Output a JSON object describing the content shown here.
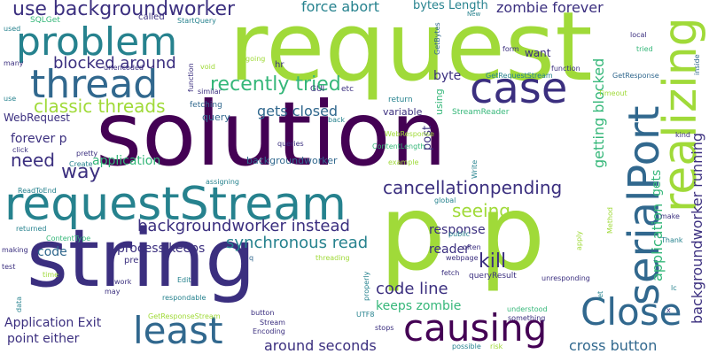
{
  "palette": {
    "dark_purple": "#440154",
    "indigo": "#3b2f7f",
    "blue": "#31688e",
    "teal": "#26828e",
    "green": "#35b779",
    "lime": "#a0da39",
    "yellow": "#d8e219"
  },
  "words": [
    {
      "text": "request",
      "size": 108,
      "color": "#a0da39",
      "v": false,
      "l": 258,
      "t": 76
    },
    {
      "text": "solution",
      "size": 100,
      "color": "#440154",
      "v": false,
      "l": 108,
      "t": 197
    },
    {
      "text": "p p",
      "size": 118,
      "color": "#a0da39",
      "v": false,
      "l": 428,
      "t": 316
    },
    {
      "text": "string",
      "size": 90,
      "color": "#3b2f7f",
      "v": false,
      "l": 30,
      "t": 333
    },
    {
      "text": "requestStream",
      "size": 52,
      "color": "#26828e",
      "v": false,
      "l": 5,
      "t": 254
    },
    {
      "text": "problem",
      "size": 44,
      "color": "#26828e",
      "v": false,
      "l": 18,
      "t": 68
    },
    {
      "text": "thread",
      "size": 44,
      "color": "#31688e",
      "v": false,
      "l": 34,
      "t": 116
    },
    {
      "text": "case",
      "size": 48,
      "color": "#3b2f7f",
      "v": false,
      "l": 530,
      "t": 122
    },
    {
      "text": "realizing",
      "size": 52,
      "color": "#a0da39",
      "v": true,
      "l": 742,
      "t": 240
    },
    {
      "text": "serialPort",
      "size": 48,
      "color": "#31688e",
      "v": true,
      "l": 703,
      "t": 345
    },
    {
      "text": "Close",
      "size": 42,
      "color": "#31688e",
      "v": false,
      "l": 655,
      "t": 372
    },
    {
      "text": "least",
      "size": 42,
      "color": "#31688e",
      "v": false,
      "l": 150,
      "t": 393
    },
    {
      "text": "causing",
      "size": 42,
      "color": "#440154",
      "v": false,
      "l": 455,
      "t": 390
    },
    {
      "text": "use backgroundworker",
      "size": 22,
      "color": "#3b2f7f",
      "v": false,
      "l": 14,
      "t": 21
    },
    {
      "text": "recently tried",
      "size": 22,
      "color": "#35b779",
      "v": false,
      "l": 237,
      "t": 106
    },
    {
      "text": "classic threads",
      "size": 20,
      "color": "#a0da39",
      "v": false,
      "l": 38,
      "t": 129
    },
    {
      "text": "blocked around",
      "size": 18,
      "color": "#3b2f7f",
      "v": false,
      "l": 60,
      "t": 80
    },
    {
      "text": "force abort",
      "size": 16,
      "color": "#26828e",
      "v": false,
      "l": 340,
      "t": 14
    },
    {
      "text": "zombie forever",
      "size": 16,
      "color": "#3b2f7f",
      "v": false,
      "l": 560,
      "t": 16
    },
    {
      "text": "bytes Length",
      "size": 13,
      "color": "#26828e",
      "v": false,
      "l": 466,
      "t": 12
    },
    {
      "text": "gets closed",
      "size": 16,
      "color": "#31688e",
      "v": false,
      "l": 290,
      "t": 133
    },
    {
      "text": "forever p",
      "size": 14,
      "color": "#3b2f7f",
      "v": false,
      "l": 12,
      "t": 163
    },
    {
      "text": "need",
      "size": 20,
      "color": "#3b2f7f",
      "v": false,
      "l": 12,
      "t": 190
    },
    {
      "text": "way",
      "size": 22,
      "color": "#3b2f7f",
      "v": false,
      "l": 69,
      "t": 205
    },
    {
      "text": "application",
      "size": 14,
      "color": "#35b779",
      "v": false,
      "l": 104,
      "t": 188
    },
    {
      "text": "cancellationpending",
      "size": 20,
      "color": "#3b2f7f",
      "v": false,
      "l": 432,
      "t": 221
    },
    {
      "text": "seeing",
      "size": 20,
      "color": "#a0da39",
      "v": false,
      "l": 510,
      "t": 247
    },
    {
      "text": "kill",
      "size": 22,
      "color": "#3b2f7f",
      "v": false,
      "l": 540,
      "t": 306
    },
    {
      "text": "backgroundworker instead",
      "size": 18,
      "color": "#3b2f7f",
      "v": false,
      "l": 155,
      "t": 264
    },
    {
      "text": "synchronous read",
      "size": 18,
      "color": "#26828e",
      "v": false,
      "l": 255,
      "t": 283
    },
    {
      "text": "process keeps",
      "size": 14,
      "color": "#3b2f7f",
      "v": false,
      "l": 132,
      "t": 287
    },
    {
      "text": "response",
      "size": 14,
      "color": "#3b2f7f",
      "v": false,
      "l": 484,
      "t": 266
    },
    {
      "text": "reader",
      "size": 14,
      "color": "#3b2f7f",
      "v": false,
      "l": 484,
      "t": 288
    },
    {
      "text": "code",
      "size": 14,
      "color": "#31688e",
      "v": false,
      "l": 42,
      "t": 291
    },
    {
      "text": "code line",
      "size": 18,
      "color": "#3b2f7f",
      "v": false,
      "l": 424,
      "t": 335
    },
    {
      "text": "keeps zombie",
      "size": 14,
      "color": "#35b779",
      "v": false,
      "l": 424,
      "t": 352
    },
    {
      "text": "Application Exit",
      "size": 14,
      "color": "#3b2f7f",
      "v": false,
      "l": 5,
      "t": 371
    },
    {
      "text": "point either",
      "size": 14,
      "color": "#3b2f7f",
      "v": false,
      "l": 8,
      "t": 389
    },
    {
      "text": "around seconds",
      "size": 16,
      "color": "#3b2f7f",
      "v": false,
      "l": 298,
      "t": 398
    },
    {
      "text": "cross button",
      "size": 16,
      "color": "#31688e",
      "v": false,
      "l": 642,
      "t": 398
    },
    {
      "text": "getting blocked",
      "size": 16,
      "color": "#35b779",
      "v": true,
      "l": 668,
      "t": 190
    },
    {
      "text": "application",
      "size": 16,
      "color": "#35b779",
      "v": true,
      "l": 734,
      "t": 318
    },
    {
      "text": "gets",
      "size": 14,
      "color": "#35b779",
      "v": true,
      "l": 734,
      "t": 222
    },
    {
      "text": "backgroundworker running",
      "size": 16,
      "color": "#3b2f7f",
      "v": true,
      "l": 779,
      "t": 366
    },
    {
      "text": "byte",
      "size": 14,
      "color": "#3b2f7f",
      "v": false,
      "l": 489,
      "t": 92
    },
    {
      "text": "want",
      "size": 12,
      "color": "#3b2f7f",
      "v": false,
      "l": 592,
      "t": 65
    },
    {
      "text": "WebRequest",
      "size": 12,
      "color": "#3b2f7f",
      "v": false,
      "l": 4,
      "t": 138
    },
    {
      "text": "query",
      "size": 11,
      "color": "#31688e",
      "v": false,
      "l": 228,
      "t": 137
    },
    {
      "text": "variable",
      "size": 11,
      "color": "#3b2f7f",
      "v": false,
      "l": 432,
      "t": 131
    },
    {
      "text": "backgroundworker",
      "size": 11,
      "color": "#31688e",
      "v": false,
      "l": 278,
      "t": 186
    },
    {
      "text": "post",
      "size": 13,
      "color": "#3b2f7f",
      "v": true,
      "l": 476,
      "t": 170
    },
    {
      "text": "using",
      "size": 11,
      "color": "#35b779",
      "v": true,
      "l": 490,
      "t": 130
    },
    {
      "text": "fetching",
      "size": 9,
      "color": "#31688e",
      "v": false,
      "l": 214,
      "t": 124
    },
    {
      "text": "hr",
      "size": 10,
      "color": "#3b2f7f",
      "v": false,
      "l": 310,
      "t": 78
    },
    {
      "text": "GUI",
      "size": 9,
      "color": "#3b2f7f",
      "v": false,
      "l": 350,
      "t": 106
    },
    {
      "text": "etc",
      "size": 9,
      "color": "#3b2f7f",
      "v": false,
      "l": 385,
      "t": 106
    },
    {
      "text": "back",
      "size": 8,
      "color": "#26828e",
      "v": false,
      "l": 370,
      "t": 140
    },
    {
      "text": "return",
      "size": 9,
      "color": "#26828e",
      "v": false,
      "l": 438,
      "t": 118
    },
    {
      "text": "StreamReader",
      "size": 9,
      "color": "#35b779",
      "v": false,
      "l": 510,
      "t": 132
    },
    {
      "text": "WebResponse",
      "size": 8,
      "color": "#a0da39",
      "v": false,
      "l": 434,
      "t": 156
    },
    {
      "text": "ContentLength",
      "size": 8,
      "color": "#35b779",
      "v": false,
      "l": 420,
      "t": 170
    },
    {
      "text": "example",
      "size": 8,
      "color": "#a0da39",
      "v": false,
      "l": 438,
      "t": 188
    },
    {
      "text": "SQLGet",
      "size": 9,
      "color": "#35b779",
      "v": false,
      "l": 34,
      "t": 28
    },
    {
      "text": "urlencoded",
      "size": 8,
      "color": "#3b2f7f",
      "v": false,
      "l": 117,
      "t": 81
    },
    {
      "text": "called",
      "size": 10,
      "color": "#3b2f7f",
      "v": false,
      "l": 156,
      "t": 24
    },
    {
      "text": "StartQuery",
      "size": 8,
      "color": "#26828e",
      "v": false,
      "l": 200,
      "t": 28
    },
    {
      "text": "used",
      "size": 8,
      "color": "#26828e",
      "v": false,
      "l": 4,
      "t": 37
    },
    {
      "text": "many",
      "size": 8,
      "color": "#3b2f7f",
      "v": false,
      "l": 4,
      "t": 76
    },
    {
      "text": "use",
      "size": 8,
      "color": "#26828e",
      "v": false,
      "l": 4,
      "t": 116
    },
    {
      "text": "function",
      "size": 8,
      "color": "#3b2f7f",
      "v": true,
      "l": 212,
      "t": 104
    },
    {
      "text": "void",
      "size": 8,
      "color": "#a0da39",
      "v": false,
      "l": 226,
      "t": 80
    },
    {
      "text": "going",
      "size": 8,
      "color": "#a0da39",
      "v": false,
      "l": 277,
      "t": 71
    },
    {
      "text": "similar",
      "size": 8,
      "color": "#3b2f7f",
      "v": false,
      "l": 223,
      "t": 108
    },
    {
      "text": "click",
      "size": 8,
      "color": "#3b2f7f",
      "v": false,
      "l": 14,
      "t": 174
    },
    {
      "text": "pretty",
      "size": 8,
      "color": "#3b2f7f",
      "v": false,
      "l": 86,
      "t": 178
    },
    {
      "text": "Create",
      "size": 8,
      "color": "#26828e",
      "v": false,
      "l": 78,
      "t": 190
    },
    {
      "text": "assigning",
      "size": 8,
      "color": "#26828e",
      "v": false,
      "l": 232,
      "t": 210
    },
    {
      "text": "queries",
      "size": 8,
      "color": "#3b2f7f",
      "v": false,
      "l": 313,
      "t": 167
    },
    {
      "text": "ReadToEnd",
      "size": 8,
      "color": "#26828e",
      "v": false,
      "l": 20,
      "t": 220
    },
    {
      "text": "global",
      "size": 8,
      "color": "#26828e",
      "v": false,
      "l": 490,
      "t": 231
    },
    {
      "text": "Write",
      "size": 8,
      "color": "#26828e",
      "v": true,
      "l": 532,
      "t": 202
    },
    {
      "text": "returned",
      "size": 8,
      "color": "#26828e",
      "v": false,
      "l": 18,
      "t": 263
    },
    {
      "text": "ContentType",
      "size": 8,
      "color": "#35b779",
      "v": false,
      "l": 52,
      "t": 274
    },
    {
      "text": "making",
      "size": 8,
      "color": "#3b2f7f",
      "v": false,
      "l": 2,
      "t": 287
    },
    {
      "text": "test",
      "size": 8,
      "color": "#3b2f7f",
      "v": false,
      "l": 2,
      "t": 306
    },
    {
      "text": "time",
      "size": 8,
      "color": "#a0da39",
      "v": false,
      "l": 48,
      "t": 315
    },
    {
      "text": "pre",
      "size": 10,
      "color": "#3b2f7f",
      "v": false,
      "l": 140,
      "t": 299
    },
    {
      "text": "work",
      "size": 8,
      "color": "#3b2f7f",
      "v": false,
      "l": 129,
      "t": 323
    },
    {
      "text": "may",
      "size": 8,
      "color": "#3b2f7f",
      "v": false,
      "l": 118,
      "t": 334
    },
    {
      "text": "Edit",
      "size": 8,
      "color": "#26828e",
      "v": false,
      "l": 200,
      "t": 321
    },
    {
      "text": "respondable",
      "size": 8,
      "color": "#26828e",
      "v": false,
      "l": 183,
      "t": 341
    },
    {
      "text": "GetResponseStream",
      "size": 8,
      "color": "#a0da39",
      "v": false,
      "l": 167,
      "t": 362
    },
    {
      "text": "data",
      "size": 8,
      "color": "#26828e",
      "v": true,
      "l": 18,
      "t": 353
    },
    {
      "text": "button",
      "size": 8,
      "color": "#3b2f7f",
      "v": false,
      "l": 283,
      "t": 358
    },
    {
      "text": "Stream",
      "size": 8,
      "color": "#3b2f7f",
      "v": false,
      "l": 293,
      "t": 369
    },
    {
      "text": "Encoding",
      "size": 8,
      "color": "#3b2f7f",
      "v": false,
      "l": 285,
      "t": 379
    },
    {
      "text": "UTF8",
      "size": 8,
      "color": "#26828e",
      "v": false,
      "l": 402,
      "t": 360
    },
    {
      "text": "stops",
      "size": 8,
      "color": "#3b2f7f",
      "v": false,
      "l": 423,
      "t": 375
    },
    {
      "text": "possible",
      "size": 8,
      "color": "#26828e",
      "v": false,
      "l": 510,
      "t": 396
    },
    {
      "text": "risk",
      "size": 8,
      "color": "#a0da39",
      "v": false,
      "l": 553,
      "t": 396
    },
    {
      "text": "understood",
      "size": 8,
      "color": "#35b779",
      "v": false,
      "l": 572,
      "t": 354
    },
    {
      "text": "something",
      "size": 8,
      "color": "#3b2f7f",
      "v": false,
      "l": 573,
      "t": 364
    },
    {
      "text": "unresponding",
      "size": 8,
      "color": "#3b2f7f",
      "v": false,
      "l": 611,
      "t": 319
    },
    {
      "text": "queryResult",
      "size": 9,
      "color": "#3b2f7f",
      "v": false,
      "l": 529,
      "t": 317
    },
    {
      "text": "fetch",
      "size": 8,
      "color": "#3b2f7f",
      "v": false,
      "l": 498,
      "t": 313
    },
    {
      "text": "webpage",
      "size": 8,
      "color": "#3b2f7f",
      "v": false,
      "l": 503,
      "t": 296
    },
    {
      "text": "often",
      "size": 8,
      "color": "#3b2f7f",
      "v": false,
      "l": 522,
      "t": 284
    },
    {
      "text": "public",
      "size": 8,
      "color": "#26828e",
      "v": false,
      "l": 506,
      "t": 269
    },
    {
      "text": "apply",
      "size": 8,
      "color": "#a0da39",
      "v": true,
      "l": 650,
      "t": 283
    },
    {
      "text": "Method",
      "size": 8,
      "color": "#a0da39",
      "v": true,
      "l": 685,
      "t": 264
    },
    {
      "text": "make",
      "size": 8,
      "color": "#3b2f7f",
      "v": false,
      "l": 745,
      "t": 249
    },
    {
      "text": "Thank",
      "size": 8,
      "color": "#26828e",
      "v": false,
      "l": 746,
      "t": 276
    },
    {
      "text": "lc",
      "size": 8,
      "color": "#26828e",
      "v": false,
      "l": 757,
      "t": 330
    },
    {
      "text": "x",
      "size": 8,
      "color": "#3b2f7f",
      "v": false,
      "l": 752,
      "t": 355
    },
    {
      "text": "ret",
      "size": 8,
      "color": "#26828e",
      "v": true,
      "l": 674,
      "t": 340
    },
    {
      "text": "kind",
      "size": 8,
      "color": "#3b2f7f",
      "v": false,
      "l": 762,
      "t": 157
    },
    {
      "text": "local",
      "size": 8,
      "color": "#3b2f7f",
      "v": false,
      "l": 711,
      "t": 44
    },
    {
      "text": "tried",
      "size": 8,
      "color": "#35b779",
      "v": false,
      "l": 718,
      "t": 60
    },
    {
      "text": "inside",
      "size": 8,
      "color": "#31688e",
      "v": true,
      "l": 783,
      "t": 85
    },
    {
      "text": "GetResponse",
      "size": 8,
      "color": "#31688e",
      "v": false,
      "l": 691,
      "t": 90
    },
    {
      "text": "Timeout",
      "size": 8,
      "color": "#a0da39",
      "v": false,
      "l": 675,
      "t": 110
    },
    {
      "text": "form",
      "size": 8,
      "color": "#3b2f7f",
      "v": false,
      "l": 567,
      "t": 60
    },
    {
      "text": "function",
      "size": 8,
      "color": "#3b2f7f",
      "v": false,
      "l": 622,
      "t": 82
    },
    {
      "text": "GetRequestStream",
      "size": 8,
      "color": "#26828e",
      "v": false,
      "l": 548,
      "t": 90
    },
    {
      "text": "GetBytes",
      "size": 8,
      "color": "#31688e",
      "v": true,
      "l": 490,
      "t": 62
    },
    {
      "text": "New",
      "size": 7,
      "color": "#26828e",
      "v": false,
      "l": 527,
      "t": 20
    },
    {
      "text": "threading",
      "size": 8,
      "color": "#a0da39",
      "v": false,
      "l": 356,
      "t": 296
    },
    {
      "text": "properly",
      "size": 8,
      "color": "#26828e",
      "v": true,
      "l": 410,
      "t": 340
    },
    {
      "text": "q",
      "size": 8,
      "color": "#31688e",
      "v": false,
      "l": 281,
      "t": 296
    }
  ]
}
